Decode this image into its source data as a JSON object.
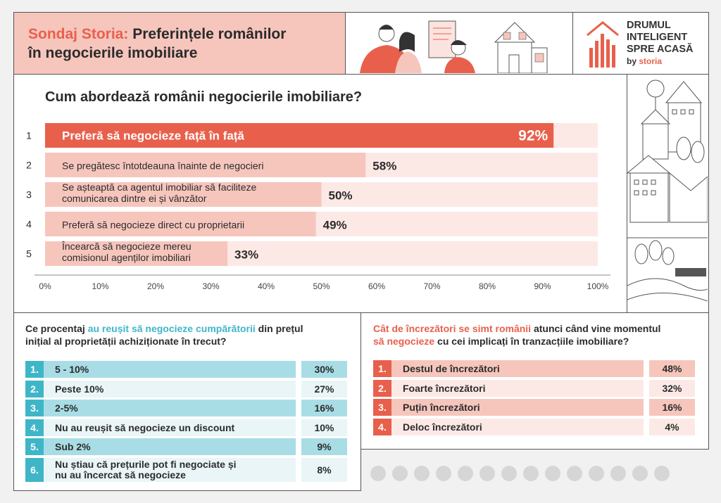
{
  "header": {
    "title_accent": "Sondaj Storia:",
    "title_rest": " Preferințele românilor",
    "title_line2": "în negocierile imobiliare"
  },
  "logo": {
    "line1": "DRUMUL",
    "line2": "INTELIGENT",
    "line3": "SPRE ACASĂ",
    "by": "by",
    "brand": "storia"
  },
  "colors": {
    "accent": "#e8604c",
    "light_bar": "#f6c6bd",
    "track": "#fce9e6",
    "teal": "#3fb6c8",
    "teal_light": "#a9dde5"
  },
  "chart_data": {
    "type": "bar",
    "title": "Cum abordează românii negocierile imobiliare?",
    "orientation": "horizontal",
    "xlim": [
      0,
      100
    ],
    "ticks": [
      "0%",
      "10%",
      "20%",
      "30%",
      "40%",
      "50%",
      "60%",
      "70%",
      "80%",
      "90%",
      "100%"
    ],
    "ranks": [
      "1",
      "2",
      "3",
      "4",
      "5"
    ],
    "categories": [
      [
        "Preferă să negocieze față în față"
      ],
      [
        "Se pregătesc întotdeauna înainte de negocieri"
      ],
      [
        "Se așteaptă ca agentul imobiliar să faciliteze",
        "comunicarea dintre ei și vânzător"
      ],
      [
        "Preferă să negocieze direct cu proprietarii"
      ],
      [
        "Încearcă să negocieze mereu",
        "comisionul agenților imobiliari"
      ]
    ],
    "values": [
      92,
      58,
      50,
      49,
      33
    ],
    "value_labels": [
      "92%",
      "58%",
      "50%",
      "49%",
      "33%"
    ]
  },
  "left_panel": {
    "q_part1": "Ce procentaj ",
    "q_highlight": "au reușit să negocieze cumpărătorii",
    "q_part2": " din prețul",
    "q_line2": "inițial al proprietății achiziționate în trecut?",
    "rows": [
      {
        "num": "1.",
        "label": "5 - 10%",
        "pct": "30%"
      },
      {
        "num": "2.",
        "label": "Peste 10%",
        "pct": "27%"
      },
      {
        "num": "3.",
        "label": "2-5%",
        "pct": "16%"
      },
      {
        "num": "4.",
        "label": "Nu au reușit să negocieze un discount",
        "pct": "10%"
      },
      {
        "num": "5.",
        "label": "Sub 2%",
        "pct": "9%"
      },
      {
        "num": "6.",
        "label": "Nu știau că prețurile pot fi negociate și",
        "label2": "nu au încercat să negocieze",
        "pct": "8%"
      }
    ]
  },
  "right_panel": {
    "q_highlight1": "Cât de încrezători se simt românii",
    "q_part1": " atunci când vine momentul",
    "q_highlight2": "să negocieze",
    "q_part2": " cu cei implicați în tranzacțiile imobiliare?",
    "rows": [
      {
        "num": "1.",
        "label": "Destul de încrezători",
        "pct": "48%"
      },
      {
        "num": "2.",
        "label": "Foarte încrezători",
        "pct": "32%"
      },
      {
        "num": "3.",
        "label": "Puțin încrezători",
        "pct": "16%"
      },
      {
        "num": "4.",
        "label": "Deloc încrezători",
        "pct": "4%"
      }
    ]
  },
  "footer_icons": [
    "house-icon",
    "cup-icon",
    "smile-icon",
    "eye-icon",
    "heart-icon",
    "tree-icon",
    "thumbs-up-icon",
    "flower-icon",
    "pin-icon",
    "house-icon",
    "car-icon",
    "key-icon",
    "balloon-icon",
    "star-icon"
  ]
}
